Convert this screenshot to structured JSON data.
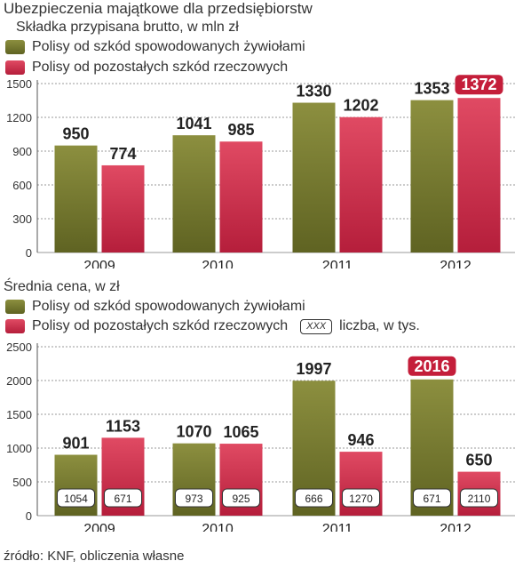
{
  "page": {
    "title": "Ubezpieczenia majątkowe dla przedsiębiorstw",
    "source": "źródło: KNF, obliczenia własne"
  },
  "legend": {
    "olive": "Polisy od szkód spowodowanych żywiołami",
    "red": "Polisy od pozostałych szkód rzeczowych",
    "count_box": "XXX",
    "count_label": "liczba, w tys."
  },
  "colors": {
    "olive_top": "#8c8f3f",
    "olive_bottom": "#5f6322",
    "red_top": "#e04a63",
    "red_bottom": "#b51e3b",
    "highlight": "#c41e3a"
  },
  "chart_data": [
    {
      "type": "bar",
      "subtitle": "Składka przypisana brutto, w mln zł",
      "categories": [
        "2009",
        "2010",
        "2011",
        "2012"
      ],
      "ylim": [
        0,
        1500
      ],
      "yticks": [
        0,
        300,
        600,
        900,
        1200,
        1500
      ],
      "grid": true,
      "series": [
        {
          "name": "Polisy od szkód spowodowanych żywiołami",
          "values": [
            950,
            1041,
            1330,
            1353
          ]
        },
        {
          "name": "Polisy od pozostałych szkód rzeczowych",
          "values": [
            774,
            985,
            1202,
            1372
          ]
        }
      ],
      "highlighted_label": {
        "series": 1,
        "index": 3
      }
    },
    {
      "type": "bar",
      "subtitle": "Średnia cena, w zł",
      "categories": [
        "2009",
        "2010",
        "2011",
        "2012"
      ],
      "ylim": [
        0,
        2500
      ],
      "yticks": [
        0,
        500,
        1000,
        1500,
        2000,
        2500
      ],
      "grid": true,
      "series": [
        {
          "name": "Polisy od szkód spowodowanych żywiołami",
          "values": [
            901,
            1070,
            1997,
            2016
          ],
          "counts_thousands": [
            1054,
            973,
            666,
            671
          ]
        },
        {
          "name": "Polisy od pozostałych szkód rzeczowych",
          "values": [
            1153,
            1065,
            946,
            650
          ],
          "counts_thousands": [
            671,
            925,
            1270,
            2110
          ]
        }
      ],
      "highlighted_label": {
        "series": 0,
        "index": 3
      }
    }
  ]
}
